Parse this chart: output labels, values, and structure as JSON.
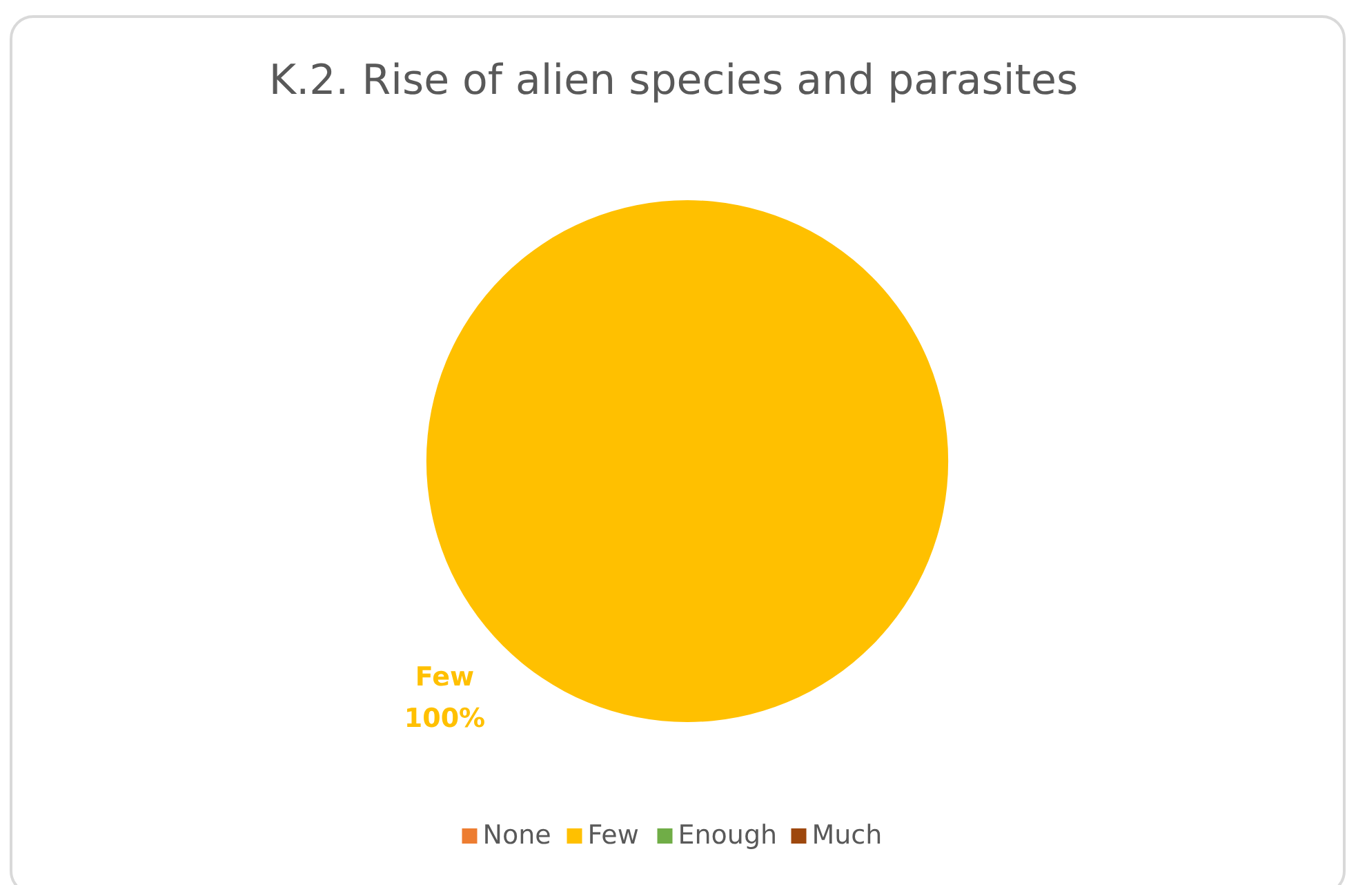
{
  "chart_data": {
    "type": "pie",
    "title": "K.2. Rise of alien species and parasites",
    "categories": [
      "None",
      "Few",
      "Enough",
      "Much"
    ],
    "values": [
      0,
      100,
      0,
      0
    ],
    "colors": [
      "#ed7d31",
      "#ffc000",
      "#70ad47",
      "#9e480e"
    ],
    "value_labels": [
      null,
      "100%",
      null,
      null
    ],
    "legend": "bottom"
  }
}
